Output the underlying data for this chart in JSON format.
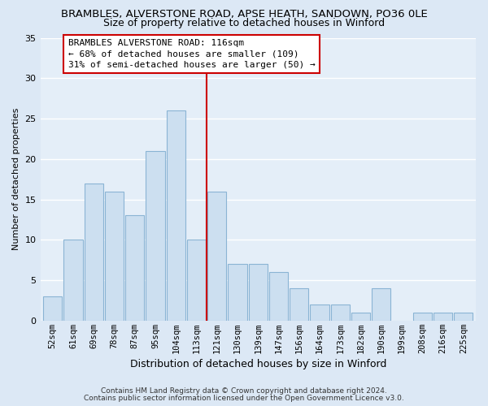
{
  "title": "BRAMBLES, ALVERSTONE ROAD, APSE HEATH, SANDOWN, PO36 0LE",
  "subtitle": "Size of property relative to detached houses in Winford",
  "xlabel": "Distribution of detached houses by size in Winford",
  "ylabel": "Number of detached properties",
  "bar_labels": [
    "52sqm",
    "61sqm",
    "69sqm",
    "78sqm",
    "87sqm",
    "95sqm",
    "104sqm",
    "113sqm",
    "121sqm",
    "130sqm",
    "139sqm",
    "147sqm",
    "156sqm",
    "164sqm",
    "173sqm",
    "182sqm",
    "190sqm",
    "199sqm",
    "208sqm",
    "216sqm",
    "225sqm"
  ],
  "bar_values": [
    3,
    10,
    17,
    16,
    13,
    21,
    26,
    10,
    16,
    7,
    7,
    6,
    4,
    2,
    2,
    1,
    4,
    0,
    1,
    1,
    1
  ],
  "bar_color": "#ccdff0",
  "bar_edge_color": "#8ab4d4",
  "vline_x": 7.5,
  "vline_color": "#cc0000",
  "annotation_title": "BRAMBLES ALVERSTONE ROAD: 116sqm",
  "annotation_line2": "← 68% of detached houses are smaller (109)",
  "annotation_line3": "31% of semi-detached houses are larger (50) →",
  "annotation_box_edgecolor": "#cc0000",
  "annotation_box_facecolor": "#ffffff",
  "ylim": [
    0,
    35
  ],
  "yticks": [
    0,
    5,
    10,
    15,
    20,
    25,
    30,
    35
  ],
  "footer1": "Contains HM Land Registry data © Crown copyright and database right 2024.",
  "footer2": "Contains public sector information licensed under the Open Government Licence v3.0.",
  "bg_color": "#dce8f5",
  "plot_bg_color": "#e4eef8",
  "title_fontsize": 9.5,
  "subtitle_fontsize": 9.0,
  "annotation_fontsize": 8.0,
  "tick_fontsize": 7.5,
  "xlabel_fontsize": 9.0,
  "ylabel_fontsize": 8.0
}
